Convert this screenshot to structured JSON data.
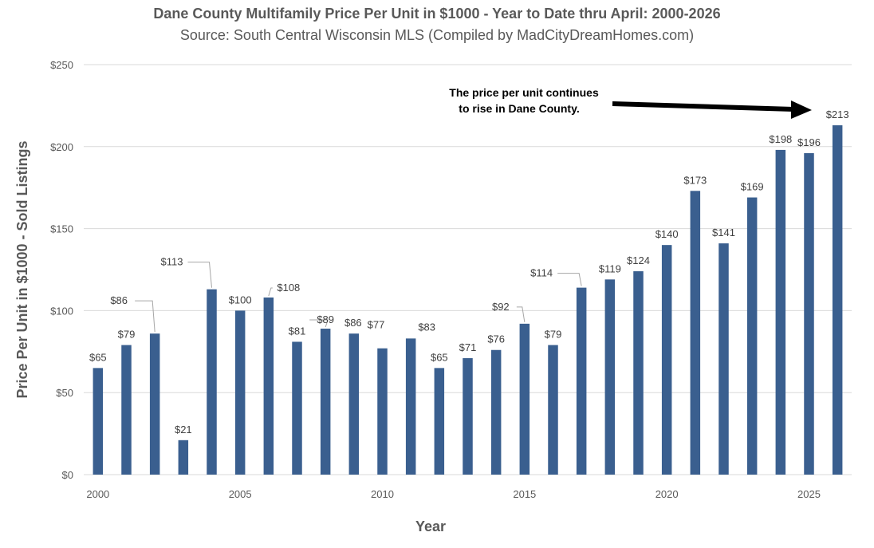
{
  "chart_data": {
    "type": "bar",
    "title": "Dane County Multifamily Price Per Unit in $1000 - Year to Date thru April: 2000-2026",
    "subtitle": "Source: South Central Wisconsin MLS (Compiled by MadCityDreamHomes.com)",
    "xlabel": "Year",
    "ylabel": "Price Per Unit in $1000 - Sold Listings",
    "categories": [
      2000,
      2001,
      2002,
      2003,
      2004,
      2005,
      2006,
      2007,
      2008,
      2009,
      2010,
      2011,
      2012,
      2013,
      2014,
      2015,
      2016,
      2017,
      2018,
      2019,
      2020,
      2021,
      2022,
      2023,
      2024,
      2025,
      2026
    ],
    "values": [
      65,
      79,
      86,
      21,
      113,
      100,
      108,
      81,
      89,
      86,
      77,
      83,
      65,
      71,
      76,
      92,
      79,
      114,
      119,
      124,
      140,
      173,
      141,
      169,
      198,
      196,
      213
    ],
    "data_labels": [
      "$65",
      "$79",
      "$86",
      "$21",
      "$113",
      "$100",
      "$108",
      "$81",
      "$89",
      "$86",
      "$77",
      "$83",
      "$65",
      "$71",
      "$76",
      "$92",
      "$79",
      "$114",
      "$119",
      "$124",
      "$140",
      "$173",
      "$141",
      "$169",
      "$198",
      "$196",
      "$213"
    ],
    "x_tick_labels": [
      "2000",
      "2005",
      "2010",
      "2015",
      "2020",
      "2025"
    ],
    "y_tick_labels": [
      "$0",
      "$50",
      "$100",
      "$150",
      "$200",
      "$250"
    ],
    "y_ticks": [
      0,
      50,
      100,
      150,
      200,
      250
    ],
    "ylim": [
      0,
      250
    ],
    "grid": true,
    "legend": "none",
    "bar_color": "#3A5F8F",
    "annotation": {
      "lines": [
        "The price per unit continues",
        "to rise in Dane County."
      ]
    }
  }
}
